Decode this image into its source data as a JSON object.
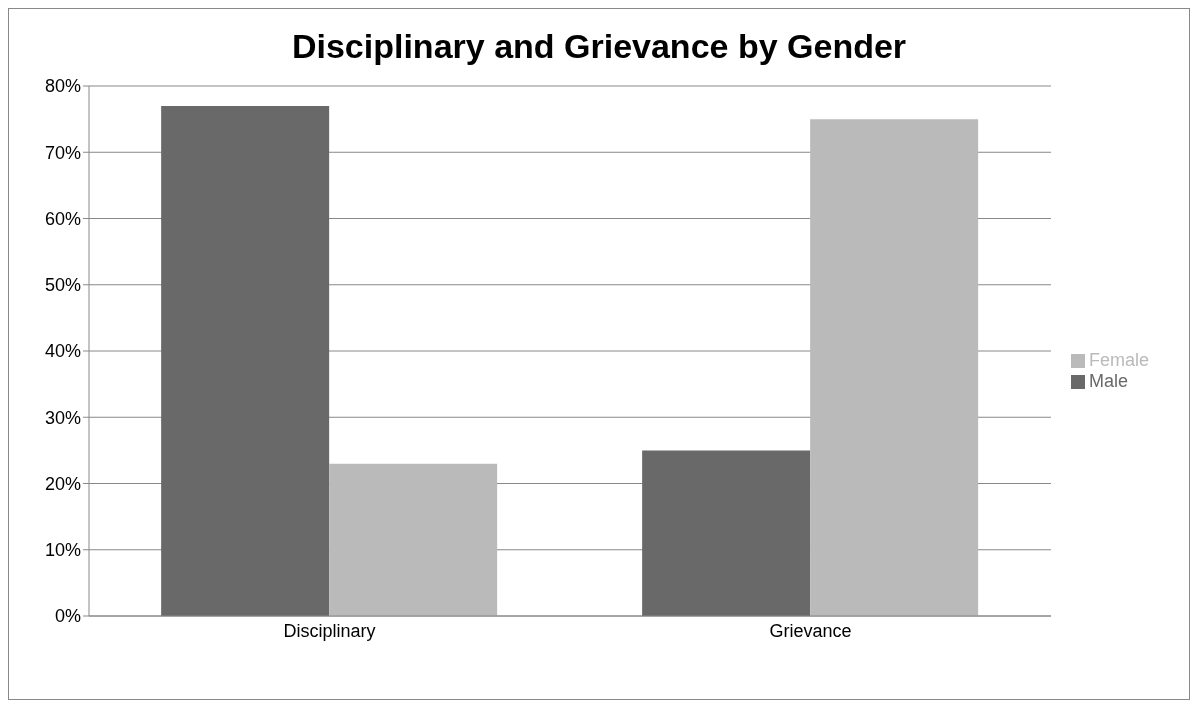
{
  "chart_data": {
    "type": "bar",
    "title": "Disciplinary and Grievance by Gender",
    "categories": [
      "Disciplinary",
      "Grievance"
    ],
    "series": [
      {
        "name": "Male",
        "color": "#696969",
        "values": [
          77,
          25
        ]
      },
      {
        "name": "Female",
        "color": "#bababa",
        "values": [
          23,
          75
        ]
      }
    ],
    "ylim": [
      0,
      80
    ],
    "yticks": [
      {
        "value": 0,
        "label": "0%"
      },
      {
        "value": 10,
        "label": "10%"
      },
      {
        "value": 20,
        "label": "20%"
      },
      {
        "value": 30,
        "label": "30%"
      },
      {
        "value": 40,
        "label": "40%"
      },
      {
        "value": 50,
        "label": "50%"
      },
      {
        "value": 60,
        "label": "60%"
      },
      {
        "value": 70,
        "label": "70%"
      },
      {
        "value": 80,
        "label": "80%"
      }
    ],
    "grid": "y",
    "legend": "right"
  }
}
